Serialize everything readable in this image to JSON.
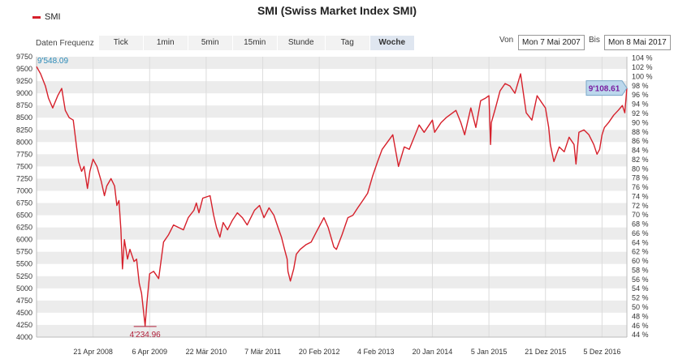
{
  "title": "SMI (Swiss Market Index SMI)",
  "legend": "SMI",
  "toolbar": {
    "label": "Daten Frequenz",
    "tabs": [
      {
        "label": "Tick",
        "active": false
      },
      {
        "label": "1min",
        "active": false
      },
      {
        "label": "5min",
        "active": false
      },
      {
        "label": "15min",
        "active": false
      },
      {
        "label": "Stunde",
        "active": false
      },
      {
        "label": "Tag",
        "active": false
      },
      {
        "label": "Woche",
        "active": true
      }
    ],
    "from_label": "Von",
    "from_value": "Mon 7 Mai 2007",
    "to_label": "Bis",
    "to_value": "Mon 8 Mai 2017"
  },
  "colors": {
    "line": "#d6202b",
    "band": "#ececec",
    "start_label": "#2a8ab8",
    "min_label": "#b0203a",
    "last_label": "#7a1fa0",
    "last_bg": "#bcd8ec"
  },
  "chart_data": {
    "type": "line",
    "x_tick_labels": [
      "21 Apr 2008",
      "6 Apr 2009",
      "22 Mär 2010",
      "7 Mär 2011",
      "20 Feb 2012",
      "4 Feb 2013",
      "20 Jan 2014",
      "5 Jan 2015",
      "21 Dez 2015",
      "5 Dez 2016"
    ],
    "x_ticks": [
      "2008-04-21",
      "2009-04-06",
      "2010-03-22",
      "2011-03-07",
      "2012-02-20",
      "2013-02-04",
      "2014-01-20",
      "2015-01-05",
      "2015-12-21",
      "2016-12-05"
    ],
    "x_range": [
      "2007-05-07",
      "2017-05-08"
    ],
    "y_range": [
      4000,
      9750
    ],
    "y_ticks": [
      4000,
      4250,
      4500,
      4750,
      5000,
      5250,
      5500,
      5750,
      6000,
      6250,
      6500,
      6750,
      7000,
      7250,
      7500,
      7750,
      8000,
      8250,
      8500,
      8750,
      9000,
      9250,
      9500,
      9750
    ],
    "y_tick_labels": [
      "4000",
      "4250",
      "4500",
      "4750",
      "5000",
      "5250",
      "5500",
      "5750",
      "6000",
      "6250",
      "6500",
      "6750",
      "7000",
      "7250",
      "7500",
      "7750",
      "8000",
      "8250",
      "8500",
      "8750",
      "9000",
      "9250",
      "9500",
      "9750"
    ],
    "right_axis_labels": [
      "44 %",
      "46 %",
      "48 %",
      "50 %",
      "52 %",
      "54 %",
      "56 %",
      "58 %",
      "60 %",
      "62 %",
      "64 %",
      "66 %",
      "68 %",
      "70 %",
      "72 %",
      "74 %",
      "76 %",
      "78 %",
      "80 %",
      "82 %",
      "84 %",
      "86 %",
      "88 %",
      "90 %",
      "92 %",
      "94 %",
      "96 %",
      "98 %",
      "100 %",
      "102 %",
      "104 %"
    ],
    "right_axis_range": [
      43.5,
      104.3
    ],
    "annotations": [
      {
        "label": "9'548.09",
        "x": "2007-05-07",
        "y": 9548.09
      },
      {
        "label": "4'234.96",
        "x": "2009-03-09",
        "y": 4234.96
      },
      {
        "label": "9'108.61",
        "x": "2017-05-08",
        "y": 9108.61
      }
    ],
    "series": [
      {
        "x": [
          "2007-05-07",
          "2007-06-01",
          "2007-07-01",
          "2007-07-20",
          "2007-08-15",
          "2007-09-15",
          "2007-10-10",
          "2007-11-01",
          "2007-11-25",
          "2007-12-20",
          "2008-01-10",
          "2008-01-22",
          "2008-02-10",
          "2008-02-25",
          "2008-03-17",
          "2008-04-01",
          "2008-04-21",
          "2008-05-15",
          "2008-06-10",
          "2008-06-30",
          "2008-07-15",
          "2008-08-10",
          "2008-09-01",
          "2008-09-15",
          "2008-09-28",
          "2008-10-10",
          "2008-10-20",
          "2008-11-01",
          "2008-11-20",
          "2008-12-05",
          "2008-12-30",
          "2009-01-15",
          "2009-02-01",
          "2009-02-15",
          "2009-03-09",
          "2009-03-20",
          "2009-04-06",
          "2009-05-01",
          "2009-06-01",
          "2009-07-01",
          "2009-08-01",
          "2009-09-01",
          "2009-10-01",
          "2009-11-01",
          "2009-12-01",
          "2010-01-05",
          "2010-01-20",
          "2010-02-05",
          "2010-03-01",
          "2010-04-15",
          "2010-05-07",
          "2010-05-25",
          "2010-06-15",
          "2010-07-05",
          "2010-08-01",
          "2010-09-01",
          "2010-10-01",
          "2010-11-01",
          "2010-12-01",
          "2011-01-15",
          "2011-02-15",
          "2011-03-15",
          "2011-04-15",
          "2011-05-15",
          "2011-06-15",
          "2011-07-01",
          "2011-07-20",
          "2011-08-05",
          "2011-08-10",
          "2011-08-25",
          "2011-09-15",
          "2011-10-01",
          "2011-10-25",
          "2011-12-01",
          "2012-01-01",
          "2012-02-01",
          "2012-03-20",
          "2012-04-15",
          "2012-05-20",
          "2012-06-05",
          "2012-07-10",
          "2012-08-15",
          "2012-09-15",
          "2012-10-15",
          "2012-11-15",
          "2012-12-15",
          "2013-01-15",
          "2013-02-15",
          "2013-03-15",
          "2013-05-20",
          "2013-06-24",
          "2013-07-30",
          "2013-08-30",
          "2013-10-30",
          "2013-11-30",
          "2014-01-20",
          "2014-02-03",
          "2014-03-15",
          "2014-04-15",
          "2014-06-15",
          "2014-07-15",
          "2014-08-08",
          "2014-09-15",
          "2014-10-16",
          "2014-11-15",
          "2014-12-15",
          "2015-01-05",
          "2015-01-15",
          "2015-01-20",
          "2015-02-15",
          "2015-03-15",
          "2015-04-15",
          "2015-05-15",
          "2015-06-15",
          "2015-07-20",
          "2015-08-24",
          "2015-09-28",
          "2015-10-30",
          "2015-11-30",
          "2015-12-21",
          "2016-01-10",
          "2016-01-20",
          "2016-02-11",
          "2016-03-15",
          "2016-04-15",
          "2016-05-15",
          "2016-06-15",
          "2016-06-27",
          "2016-07-15",
          "2016-08-15",
          "2016-09-15",
          "2016-10-15",
          "2016-11-04",
          "2016-11-20",
          "2016-12-05",
          "2016-12-20",
          "2017-01-15",
          "2017-02-15",
          "2017-03-15",
          "2017-04-10",
          "2017-04-25",
          "2017-05-08"
        ],
        "y": [
          9548,
          9400,
          9150,
          8900,
          8700,
          8950,
          9100,
          8650,
          8500,
          8450,
          7900,
          7600,
          7400,
          7500,
          7050,
          7400,
          7650,
          7500,
          7200,
          6900,
          7100,
          7250,
          7100,
          6700,
          6800,
          6200,
          5400,
          6000,
          5600,
          5800,
          5550,
          5600,
          5100,
          4900,
          4235,
          4700,
          5300,
          5350,
          5200,
          5950,
          6100,
          6300,
          6250,
          6200,
          6450,
          6600,
          6750,
          6550,
          6850,
          6900,
          6500,
          6250,
          6050,
          6350,
          6200,
          6400,
          6550,
          6450,
          6300,
          6600,
          6700,
          6450,
          6650,
          6500,
          6200,
          6050,
          5800,
          5600,
          5350,
          5150,
          5400,
          5700,
          5800,
          5900,
          5950,
          6150,
          6450,
          6250,
          5850,
          5800,
          6100,
          6450,
          6500,
          6650,
          6800,
          6950,
          7300,
          7600,
          7850,
          8150,
          7500,
          7900,
          7850,
          8350,
          8200,
          8450,
          8200,
          8400,
          8500,
          8650,
          8400,
          8150,
          8700,
          8300,
          8850,
          8900,
          8950,
          7950,
          8400,
          8700,
          9050,
          9200,
          9150,
          9000,
          9400,
          8600,
          8450,
          8950,
          8800,
          8700,
          8300,
          7950,
          7600,
          7900,
          7800,
          8100,
          7950,
          7550,
          8200,
          8250,
          8150,
          7950,
          7750,
          7850,
          8150,
          8300,
          8400,
          8550,
          8650,
          8750,
          8600,
          9108
        ]
      }
    ]
  }
}
